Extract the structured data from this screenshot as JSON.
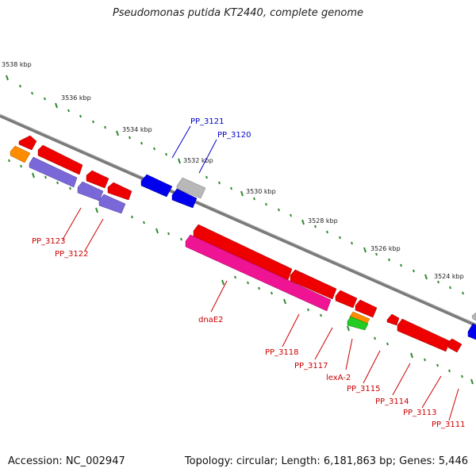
{
  "title": "Pseudomonas putida KT2440, complete genome",
  "accession": "Accession: NC_002947",
  "summary": "Topology: circular; Length: 6,181,863 bp; Genes: 5,446",
  "scale_labels": [
    "3538 kbp",
    "3536 kbp",
    "3534 kbp",
    "3532 kbp",
    "3530 kbp",
    "3528 kbp",
    "3526 kbp",
    "3524 kbp"
  ],
  "gene_labels": [
    {
      "text": "PP_3121",
      "color": "#0000cc"
    },
    {
      "text": "PP_3120",
      "color": "#0000cc"
    },
    {
      "text": "PP_3123",
      "color": "#cc0000"
    },
    {
      "text": "PP_3122",
      "color": "#cc0000"
    },
    {
      "text": "dnaE2",
      "color": "#cc0000"
    },
    {
      "text": "PP_3118",
      "color": "#cc0000"
    },
    {
      "text": "PP_3117",
      "color": "#cc0000"
    },
    {
      "text": "lexA-2",
      "color": "#cc0000"
    },
    {
      "text": "PP_3115",
      "color": "#cc0000"
    },
    {
      "text": "PP_3114",
      "color": "#cc0000"
    },
    {
      "text": "PP_3113",
      "color": "#cc0000"
    },
    {
      "text": "PP_3111",
      "color": "#cc0000"
    }
  ],
  "colors": {
    "backbone": "#7a7a7a",
    "scale_tick": "#2e8b2e",
    "gene_red": "#ee0000",
    "gene_blue": "#0000ee",
    "gene_purple": "#7b68d8",
    "gene_pink": "#ee1493",
    "gene_orange": "#ff8c00",
    "gene_green": "#22cc22",
    "gene_gray": "#b8b8b8"
  }
}
